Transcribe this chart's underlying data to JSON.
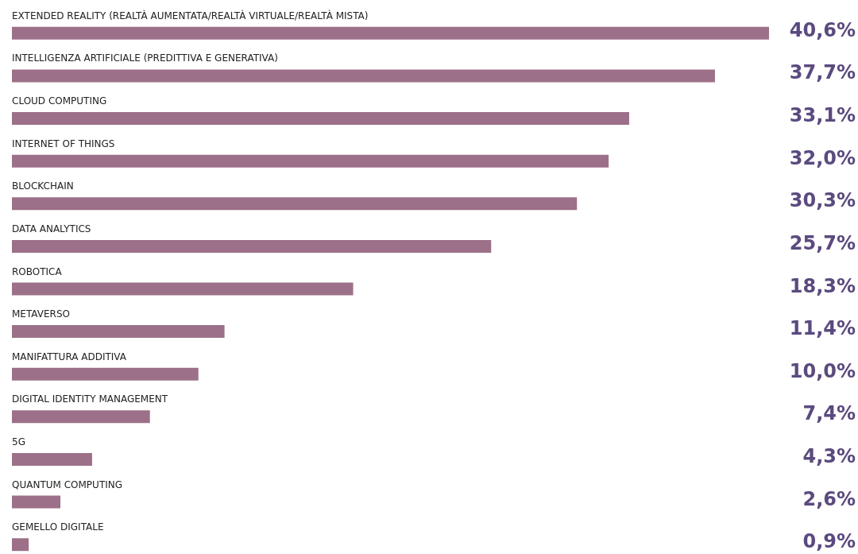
{
  "chart_data": {
    "type": "bar",
    "orientation": "horizontal",
    "categories": [
      "EXTENDED REALITY (REALTÀ AUMENTATA/REALTÀ VIRTUALE/REALTÀ MISTA)",
      "INTELLIGENZA ARTIFICIALE (PREDITTIVA E GENERATIVA)",
      "CLOUD COMPUTING",
      "INTERNET OF THINGS",
      "BLOCKCHAIN",
      "DATA ANALYTICS",
      "ROBOTICA",
      "METAVERSO",
      "MANIFATTURA ADDITIVA",
      "DIGITAL IDENTITY MANAGEMENT",
      "5G",
      "QUANTUM COMPUTING",
      "GEMELLO DIGITALE"
    ],
    "values": [
      40.6,
      37.7,
      33.1,
      32.0,
      30.3,
      25.7,
      18.3,
      11.4,
      10.0,
      7.4,
      4.3,
      2.6,
      0.9
    ],
    "value_labels": [
      "40,6%",
      "37,7%",
      "33,1%",
      "32,0%",
      "30,3%",
      "25,7%",
      "18,3%",
      "11,4%",
      "10,0%",
      "7,4%",
      "4,3%",
      "2,6%",
      "0,9%"
    ],
    "color": "#9c7088"
  }
}
